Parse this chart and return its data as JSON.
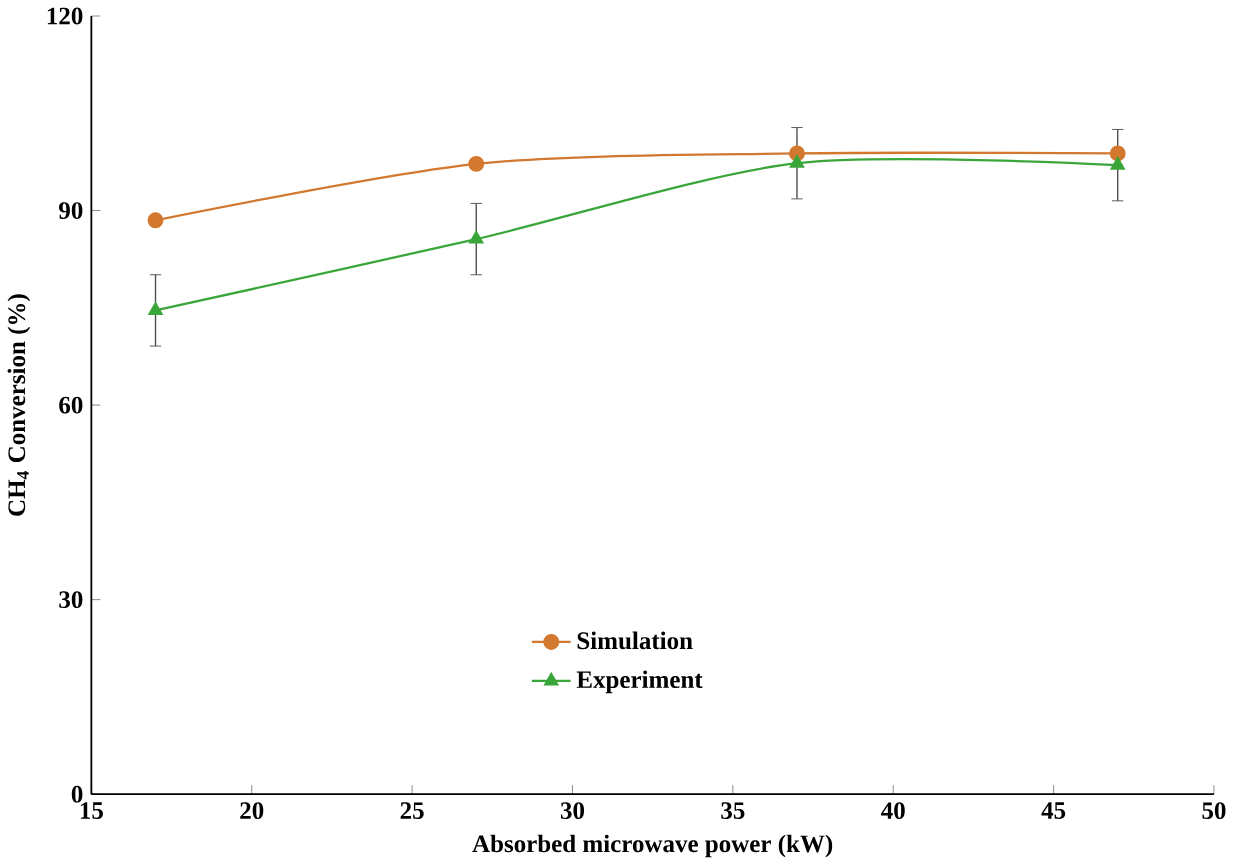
{
  "chart_data": {
    "type": "line",
    "xlabel": "Absorbed microwave power (kW)",
    "ylabel": "CH$_{4}$ Conversion (%)",
    "x": [
      17,
      27,
      37,
      47
    ],
    "series": [
      {
        "name": "Simulation",
        "color": "#d2782f",
        "marker": "circle",
        "values": [
          88.5,
          97.2,
          98.8,
          98.8
        ]
      },
      {
        "name": "Experiment",
        "color": "#3aa63a",
        "marker": "triangle",
        "values": [
          74.6,
          85.6,
          97.3,
          97.0
        ],
        "errors": [
          5.5,
          5.5,
          5.5,
          5.5
        ]
      }
    ],
    "xlim": [
      15,
      50
    ],
    "xticks": [
      15,
      20,
      25,
      30,
      35,
      40,
      45,
      50
    ],
    "ylim": [
      0,
      120
    ],
    "yticks": [
      0,
      30,
      60,
      90,
      120
    ],
    "grid": false,
    "legend": "bottom",
    "line_style": "solid"
  }
}
